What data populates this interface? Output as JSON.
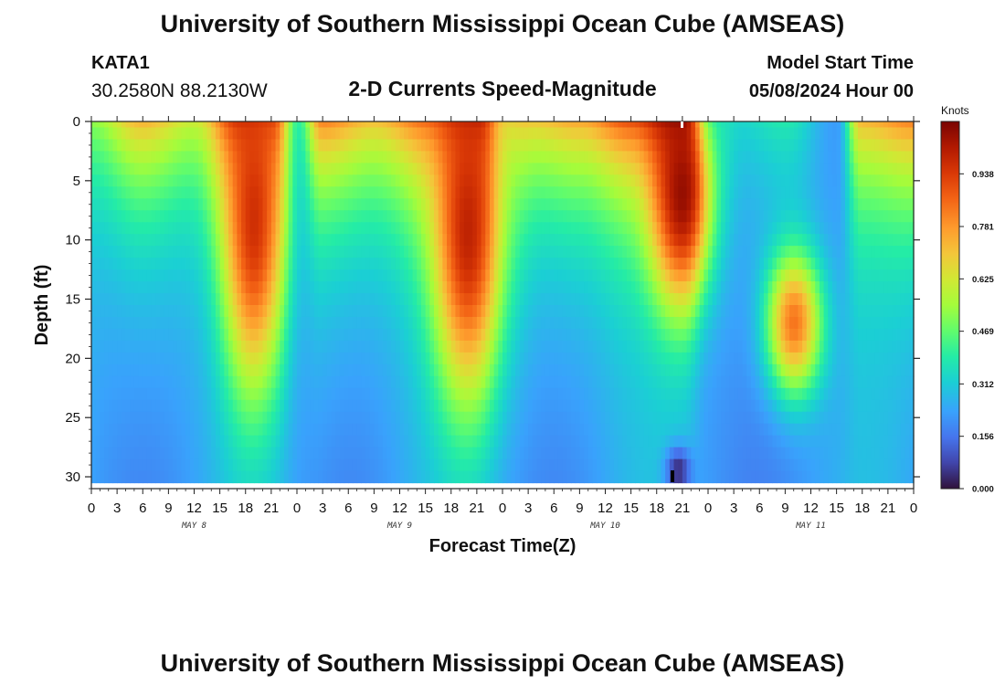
{
  "header": {
    "title": "University of Southern Mississippi Ocean Cube (AMSEAS)",
    "station": "KATA1",
    "coords": "30.2580N  88.2130W",
    "subtitle": "2-D Currents Speed-Magnitude",
    "model_start_label": "Model Start Time",
    "model_start_value": "05/08/2024 Hour 00"
  },
  "footer": {
    "title": "University of Southern Mississippi Ocean Cube (AMSEAS)"
  },
  "chart_data": {
    "type": "heatmap",
    "title": "2-D Currents Speed-Magnitude",
    "xlabel": "Forecast Time(Z)",
    "ylabel": "Depth (ft)",
    "colorbar_label": "Knots",
    "x_range_hours": [
      0,
      96
    ],
    "ylim": [
      0,
      31
    ],
    "x_tick_labels": [
      "0",
      "3",
      "6",
      "9",
      "12",
      "15",
      "18",
      "21",
      "0",
      "3",
      "6",
      "9",
      "12",
      "15",
      "18",
      "21",
      "0",
      "3",
      "6",
      "9",
      "12",
      "15",
      "18",
      "21",
      "0",
      "3",
      "6",
      "9",
      "12",
      "15",
      "18",
      "21",
      "0"
    ],
    "y_ticks": [
      0,
      5,
      10,
      15,
      20,
      25,
      30
    ],
    "day_labels": [
      {
        "label": "MAY 8",
        "hour": 12
      },
      {
        "label": "MAY 9",
        "hour": 36
      },
      {
        "label": "MAY 10",
        "hour": 60
      },
      {
        "label": "MAY 11",
        "hour": 84
      }
    ],
    "colorbar_range": [
      0.0,
      1.094
    ],
    "colorbar_ticks": [
      "0.000",
      "0.156",
      "0.312",
      "0.469",
      "0.625",
      "0.781",
      "0.938"
    ],
    "colorbar_tick_values": [
      0.0,
      0.156,
      0.312,
      0.469,
      0.625,
      0.781,
      0.938
    ],
    "depth_levels_ft": [
      0,
      1,
      2,
      3,
      4,
      5,
      6,
      7,
      8,
      9,
      10,
      11,
      12,
      13,
      14,
      15,
      16,
      17,
      18,
      19,
      20,
      21,
      22,
      23,
      24,
      25,
      26,
      27,
      28,
      29,
      30
    ],
    "surface_profile_hours": [
      0,
      6,
      12,
      18,
      21,
      24,
      27,
      33,
      39,
      45,
      48,
      51,
      57,
      63,
      69,
      72,
      75,
      81,
      87,
      90,
      96
    ],
    "surface_speed_knots": [
      0.52,
      0.72,
      0.6,
      0.95,
      0.88,
      0.35,
      0.8,
      0.7,
      0.82,
      0.98,
      0.6,
      0.68,
      0.74,
      0.88,
      1.05,
      0.25,
      0.32,
      0.38,
      0.22,
      0.72,
      0.8
    ],
    "features": [
      {
        "name": "surface jet day1",
        "hour_center": 19,
        "hour_width": 3.5,
        "depth_center": 8,
        "depth_extent": 14,
        "speed": 0.95
      },
      {
        "name": "surface jet day2",
        "hour_center": 44,
        "hour_width": 4,
        "depth_center": 9,
        "depth_extent": 14,
        "speed": 0.98
      },
      {
        "name": "surface jet day3",
        "hour_center": 69,
        "hour_width": 3.5,
        "depth_center": 6,
        "depth_extent": 9,
        "speed": 1.05
      },
      {
        "name": "subsurface core day4",
        "hour_center": 82,
        "hour_width": 3.2,
        "depth_center": 17,
        "depth_extent": 6,
        "speed": 0.85
      },
      {
        "name": "bottom minimum",
        "hour_center": 68.5,
        "hour_width": 1.5,
        "depth_center": 29.5,
        "depth_extent": 2,
        "speed": 0.0
      }
    ]
  }
}
